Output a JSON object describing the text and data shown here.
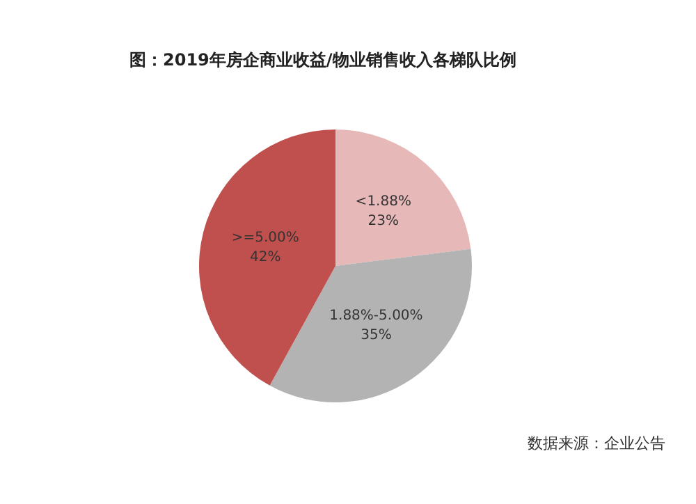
{
  "chart_data": {
    "type": "pie",
    "title": "图：2019年房企商业收益/物业销售收入各梯队比例",
    "categories": [
      "<1.88%",
      "1.88%-5.00%",
      ">=5.00%"
    ],
    "values": [
      23,
      35,
      42
    ],
    "value_labels": [
      "23%",
      "35%",
      "42%"
    ],
    "colors": [
      "#e6b9b8",
      "#b3b3b3",
      "#c0504d"
    ],
    "legend": false,
    "annotations": [
      "数据来源：企业公告"
    ]
  }
}
